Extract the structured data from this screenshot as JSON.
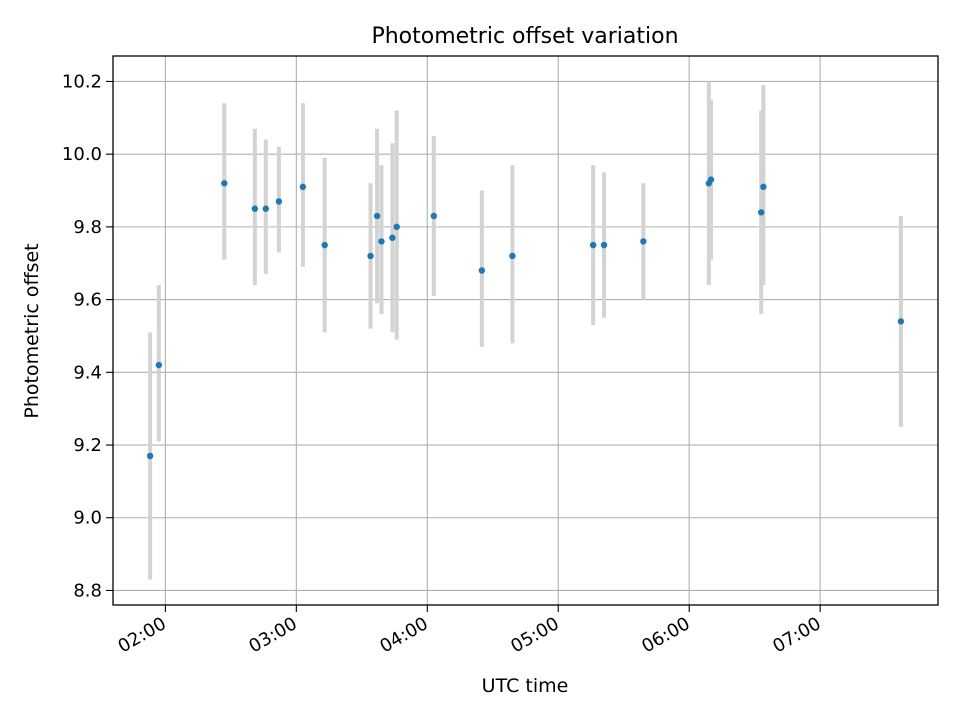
{
  "chart_data": {
    "type": "scatter",
    "title": "Photometric offset variation",
    "xlabel": "UTC time",
    "ylabel": "Photometric offset",
    "grid": true,
    "x_tick_labels": [
      "02:00",
      "03:00",
      "04:00",
      "05:00",
      "06:00",
      "07:00"
    ],
    "x_ticks": [
      "02:00",
      "03:00",
      "04:00",
      "05:00",
      "06:00",
      "07:00"
    ],
    "xlim": [
      "01:36",
      "07:54"
    ],
    "y_ticks": [
      8.8,
      9.0,
      9.2,
      9.4,
      9.6,
      9.8,
      10.0,
      10.2
    ],
    "y_tick_labels": [
      "8.8",
      "9.0",
      "9.2",
      "9.4",
      "9.6",
      "9.8",
      "10.0",
      "10.2"
    ],
    "ylim": [
      8.76,
      10.27
    ],
    "point_color": "#1f77b4",
    "errorbar_color": "#d3d3d3",
    "points": [
      {
        "x": "01:53",
        "y": 9.17,
        "low": 8.83,
        "high": 9.51
      },
      {
        "x": "01:57",
        "y": 9.42,
        "low": 9.21,
        "high": 9.64
      },
      {
        "x": "02:27",
        "y": 9.92,
        "low": 9.71,
        "high": 10.14
      },
      {
        "x": "02:41",
        "y": 9.85,
        "low": 9.64,
        "high": 10.07
      },
      {
        "x": "02:46",
        "y": 9.85,
        "low": 9.67,
        "high": 10.04
      },
      {
        "x": "02:52",
        "y": 9.87,
        "low": 9.73,
        "high": 10.02
      },
      {
        "x": "03:03",
        "y": 9.91,
        "low": 9.69,
        "high": 10.14
      },
      {
        "x": "03:13",
        "y": 9.75,
        "low": 9.51,
        "high": 9.99
      },
      {
        "x": "03:34",
        "y": 9.72,
        "low": 9.52,
        "high": 9.92
      },
      {
        "x": "03:37",
        "y": 9.83,
        "low": 9.59,
        "high": 10.07
      },
      {
        "x": "03:39",
        "y": 9.76,
        "low": 9.56,
        "high": 9.97
      },
      {
        "x": "03:44",
        "y": 9.77,
        "low": 9.51,
        "high": 10.03
      },
      {
        "x": "03:46",
        "y": 9.8,
        "low": 9.49,
        "high": 10.12
      },
      {
        "x": "04:03",
        "y": 9.83,
        "low": 9.61,
        "high": 10.05
      },
      {
        "x": "04:25",
        "y": 9.68,
        "low": 9.47,
        "high": 9.9
      },
      {
        "x": "04:39",
        "y": 9.72,
        "low": 9.48,
        "high": 9.97
      },
      {
        "x": "05:16",
        "y": 9.75,
        "low": 9.53,
        "high": 9.97
      },
      {
        "x": "05:21",
        "y": 9.75,
        "low": 9.55,
        "high": 9.95
      },
      {
        "x": "05:39",
        "y": 9.76,
        "low": 9.6,
        "high": 9.92
      },
      {
        "x": "06:09",
        "y": 9.92,
        "low": 9.64,
        "high": 10.2
      },
      {
        "x": "06:10",
        "y": 9.93,
        "low": 9.71,
        "high": 10.15
      },
      {
        "x": "06:33",
        "y": 9.84,
        "low": 9.56,
        "high": 10.12
      },
      {
        "x": "06:34",
        "y": 9.91,
        "low": 9.64,
        "high": 10.19
      },
      {
        "x": "07:37",
        "y": 9.54,
        "low": 9.25,
        "high": 9.83
      }
    ]
  }
}
